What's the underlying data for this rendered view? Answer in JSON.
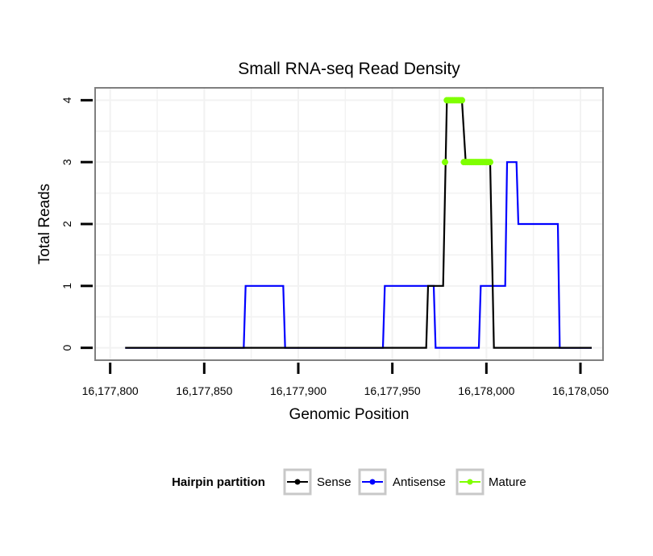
{
  "chart_data": {
    "type": "line",
    "title": "Small RNA-seq Read Density",
    "xlabel": "Genomic Position",
    "ylabel": "Total Reads",
    "xlim": [
      16177792,
      16178062
    ],
    "ylim": [
      -0.2,
      4.2
    ],
    "grid": true,
    "x_ticks": [
      16177800,
      16177850,
      16177900,
      16177950,
      16178000,
      16178050
    ],
    "x_tick_labels": [
      "16,177,800",
      "16,177,850",
      "16,177,900",
      "16,177,950",
      "16,178,000",
      "16,178,050"
    ],
    "y_ticks": [
      0,
      1,
      2,
      3,
      4
    ],
    "y_tick_labels": [
      "0",
      "1",
      "2",
      "3",
      "4"
    ],
    "legend": {
      "title": "Hairpin partition",
      "position": "bottom",
      "entries": [
        "Sense",
        "Antisense",
        "Mature"
      ]
    },
    "series": [
      {
        "name": "Antisense",
        "color": "#0000ff",
        "style": "line",
        "points": [
          [
            16177808,
            0
          ],
          [
            16177871,
            0
          ],
          [
            16177872,
            1
          ],
          [
            16177892,
            1
          ],
          [
            16177893,
            0
          ],
          [
            16177945,
            0
          ],
          [
            16177946,
            1
          ],
          [
            16177972,
            1
          ],
          [
            16177973,
            0
          ],
          [
            16177996,
            0
          ],
          [
            16177997,
            1
          ],
          [
            16178010,
            1
          ],
          [
            16178011,
            3
          ],
          [
            16178016,
            3
          ],
          [
            16178017,
            2
          ],
          [
            16178038,
            2
          ],
          [
            16178039,
            0
          ],
          [
            16178056,
            0
          ]
        ]
      },
      {
        "name": "Sense",
        "color": "#000000",
        "style": "line",
        "points": [
          [
            16177808,
            0
          ],
          [
            16177968,
            0
          ],
          [
            16177969,
            1
          ],
          [
            16177977,
            1
          ],
          [
            16177979,
            4
          ],
          [
            16177987,
            4
          ],
          [
            16177989,
            3
          ],
          [
            16178002,
            3
          ],
          [
            16178004,
            0
          ],
          [
            16178056,
            0
          ]
        ]
      },
      {
        "name": "Mature",
        "color": "#7fff00",
        "style": "points",
        "points": [
          [
            16177978,
            3
          ],
          [
            16177979,
            4
          ],
          [
            16177980,
            4
          ],
          [
            16177981,
            4
          ],
          [
            16177982,
            4
          ],
          [
            16177983,
            4
          ],
          [
            16177984,
            4
          ],
          [
            16177985,
            4
          ],
          [
            16177986,
            4
          ],
          [
            16177987,
            4
          ],
          [
            16177988,
            3
          ],
          [
            16177989,
            3
          ],
          [
            16177990,
            3
          ],
          [
            16177991,
            3
          ],
          [
            16177992,
            3
          ],
          [
            16177993,
            3
          ],
          [
            16177994,
            3
          ],
          [
            16177995,
            3
          ],
          [
            16177996,
            3
          ],
          [
            16177997,
            3
          ],
          [
            16177998,
            3
          ],
          [
            16177999,
            3
          ],
          [
            16178000,
            3
          ],
          [
            16178001,
            3
          ],
          [
            16178002,
            3
          ]
        ]
      }
    ]
  }
}
